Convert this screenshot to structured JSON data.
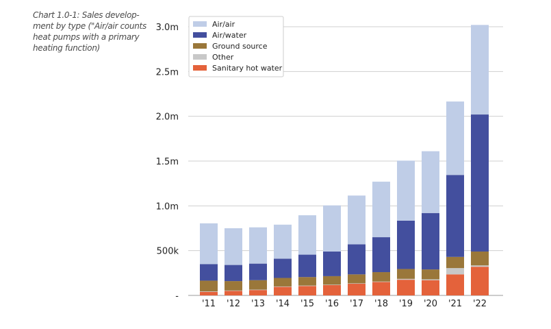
{
  "caption": "Chart 1.0-1: Sales develop-ment by type (\"Air/air counts heat pumps with a primary heating function)",
  "chart_data": {
    "type": "bar",
    "stacked": true,
    "categories": [
      "'11",
      "'12",
      "'13",
      "'14",
      "'15",
      "'16",
      "'17",
      "'18",
      "'19",
      "'20",
      "'21",
      "'22"
    ],
    "series": [
      {
        "name": "Sanitary hot water",
        "color": "#e4623b",
        "values": [
          40,
          50,
          60,
          95,
          105,
          115,
          130,
          150,
          175,
          170,
          235,
          320
        ]
      },
      {
        "name": "Other",
        "color": "#c8c8c8",
        "values": [
          5,
          5,
          5,
          5,
          5,
          5,
          5,
          5,
          10,
          10,
          70,
          15
        ]
      },
      {
        "name": "Ground source",
        "color": "#9a773a",
        "values": [
          120,
          105,
          105,
          95,
          95,
          95,
          100,
          105,
          110,
          110,
          125,
          155
        ]
      },
      {
        "name": "Air/water",
        "color": "#434f9e",
        "values": [
          185,
          180,
          185,
          215,
          250,
          275,
          335,
          390,
          540,
          630,
          915,
          1530
        ]
      },
      {
        "name": "Air/air",
        "color": "#bfcde7",
        "values": [
          455,
          410,
          405,
          380,
          440,
          515,
          545,
          620,
          670,
          690,
          820,
          1000
        ]
      }
    ],
    "legend_order": [
      "Air/air",
      "Air/water",
      "Ground source",
      "Other",
      "Sanitary hot water"
    ],
    "legend_position": "top-left",
    "yticks": [
      {
        "value": 0,
        "label": "-"
      },
      {
        "value": 500,
        "label": "500k"
      },
      {
        "value": 1000,
        "label": "1.0m"
      },
      {
        "value": 1500,
        "label": "1.5m"
      },
      {
        "value": 2000,
        "label": "2.0m"
      },
      {
        "value": 2500,
        "label": "2.5m"
      },
      {
        "value": 3000,
        "label": "3.0m"
      }
    ],
    "ylim": [
      0,
      3000
    ],
    "grid": true,
    "xlabel": "",
    "ylabel": ""
  }
}
